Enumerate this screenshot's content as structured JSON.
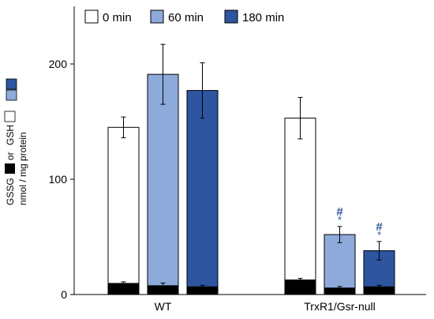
{
  "chart_data": {
    "type": "bar",
    "stacked_base": true,
    "categories": [
      "WT",
      "TrxR1/Gsr-null"
    ],
    "ylim": [
      0,
      250
    ],
    "yticks": [
      0,
      100,
      200
    ],
    "ytick_labels": [
      "0",
      "100",
      "200"
    ],
    "ylabel_lines": [
      "GSSG or GSH",
      "nmol / mg protein"
    ],
    "ylabel_words": {
      "gssg": "GSSG",
      "or": "or",
      "gsh": "GSH"
    },
    "series": [
      {
        "name": "0 min",
        "color": "#ffffff",
        "values": [
          145,
          153
        ],
        "errors": [
          9,
          18
        ],
        "gssg_values": [
          10,
          13
        ],
        "gssg_errors": [
          1,
          1
        ]
      },
      {
        "name": "60 min",
        "color": "#8eaadb",
        "values": [
          191,
          52
        ],
        "errors": [
          26,
          7
        ],
        "gssg_values": [
          8,
          6
        ],
        "gssg_errors": [
          2,
          1
        ]
      },
      {
        "name": "180 min",
        "color": "#2e55a0",
        "values": [
          177,
          38
        ],
        "errors": [
          24,
          8
        ],
        "gssg_values": [
          7,
          7
        ],
        "gssg_errors": [
          1,
          1
        ]
      }
    ],
    "gssg_color": "#000000",
    "annotations": [
      {
        "category": 1,
        "series": 1,
        "hash": "#",
        "star": "*"
      },
      {
        "category": 1,
        "series": 2,
        "hash": "#",
        "star": "*"
      }
    ],
    "legend_position": "top-left",
    "grid": false
  }
}
